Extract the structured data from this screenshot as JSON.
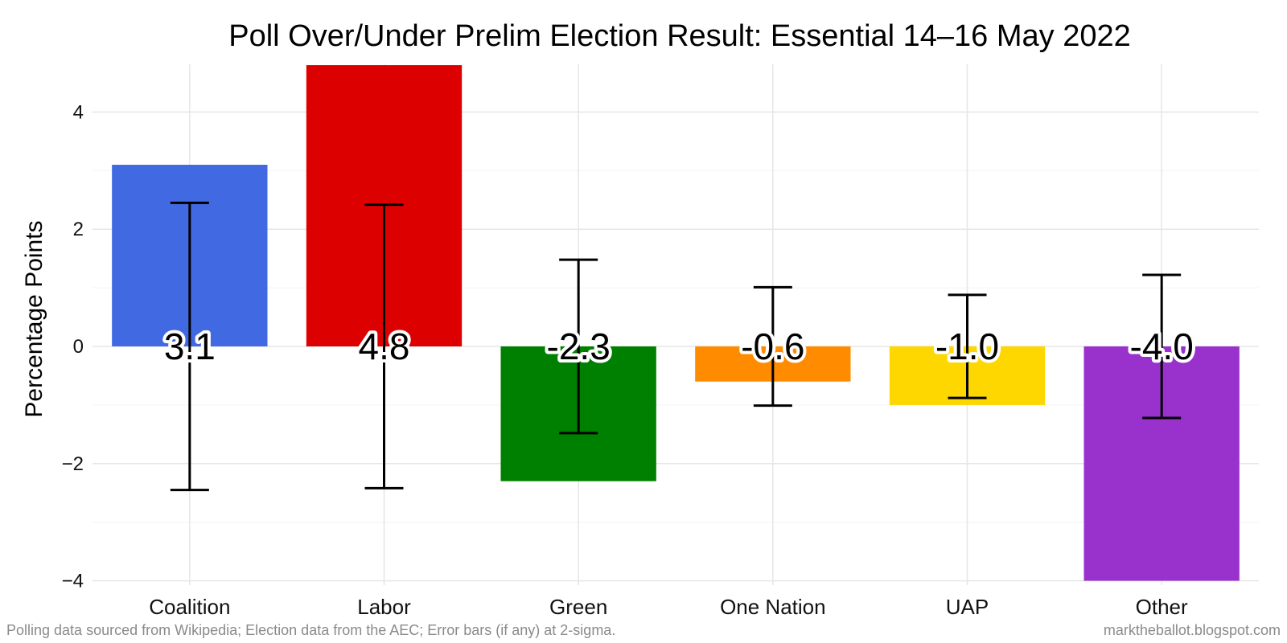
{
  "chart_data": {
    "type": "bar",
    "title": "Poll Over/Under Prelim Election Result: Essential 14–16 May 2022",
    "xlabel": "",
    "ylabel": "Percentage Points",
    "ylim": [
      -4,
      4.8
    ],
    "yticks": [
      -4,
      -2,
      0,
      2,
      4
    ],
    "ytick_labels": [
      "−4",
      "−2",
      "0",
      "2",
      "4"
    ],
    "grid": true,
    "categories": [
      "Coalition",
      "Labor",
      "Green",
      "One Nation",
      "UAP",
      "Other"
    ],
    "values": [
      3.1,
      4.8,
      -2.3,
      -0.6,
      -1.0,
      -4.0
    ],
    "value_labels": [
      "3.1",
      "4.8",
      "-2.3",
      "-0.6",
      "-1.0",
      "-4.0"
    ],
    "error_bars": [
      2.45,
      2.42,
      1.48,
      1.01,
      0.88,
      1.22
    ],
    "colors": [
      "#4169E1",
      "#DD0000",
      "#008000",
      "#FF8C00",
      "#FFD700",
      "#9932CC"
    ]
  },
  "footer": {
    "left": "Polling data sourced from Wikipedia; Election data from the AEC; Error bars (if any) at 2-sigma.",
    "right": "marktheballot.blogspot.com"
  }
}
